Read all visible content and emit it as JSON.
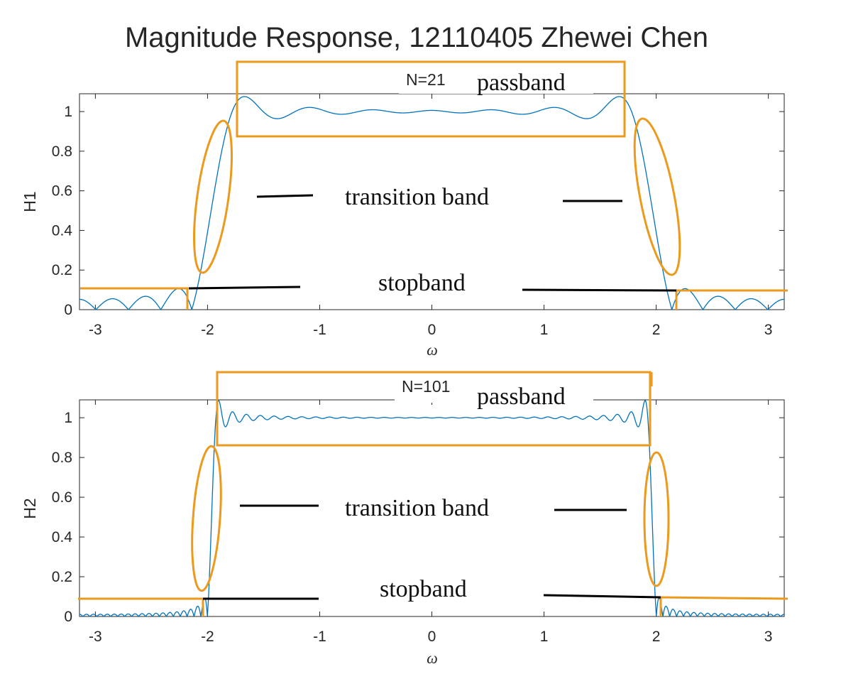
{
  "title": "Magnitude Response, 12110405 Zhewei Chen",
  "colors": {
    "curve": "#0072bd",
    "annotation": "#ec9a1d",
    "ink": "#000000",
    "axis": "#262626"
  },
  "chart_data": [
    {
      "type": "line",
      "id": "top",
      "ylabel": "H1",
      "xlabel": "ω",
      "xlim": [
        -3.14159,
        3.14159
      ],
      "ylim": [
        0,
        1.09
      ],
      "xticks": [
        -3,
        -2,
        -1,
        0,
        1,
        2,
        3
      ],
      "xtick_labels": [
        "-3",
        "-2",
        "-1",
        "0",
        "1",
        "2",
        "3"
      ],
      "yticks": [
        0,
        0.2,
        0.4,
        0.6,
        0.8,
        1
      ],
      "ytick_labels": [
        "0",
        "0.2",
        "0.4",
        "0.6",
        "0.8",
        "1"
      ],
      "filter_length": 21,
      "cutoff": 1.9635,
      "n_label": "N=21",
      "annotations": {
        "passband": "passband",
        "transition": "transition band",
        "stopband": "stopband"
      }
    },
    {
      "type": "line",
      "id": "bottom",
      "ylabel": "H2",
      "xlabel": "ω",
      "xlim": [
        -3.14159,
        3.14159
      ],
      "ylim": [
        0,
        1.09
      ],
      "xticks": [
        -3,
        -2,
        -1,
        0,
        1,
        2,
        3
      ],
      "xtick_labels": [
        "-3",
        "-2",
        "-1",
        "0",
        "1",
        "2",
        "3"
      ],
      "yticks": [
        0,
        0.2,
        0.4,
        0.6,
        0.8,
        1
      ],
      "ytick_labels": [
        "0",
        "0.2",
        "0.4",
        "0.6",
        "0.8",
        "1"
      ],
      "filter_length": 101,
      "cutoff": 1.9635,
      "n_label": "N=101",
      "annotations": {
        "passband": "passband",
        "transition": "transition band",
        "stopband": "stopband"
      }
    }
  ]
}
